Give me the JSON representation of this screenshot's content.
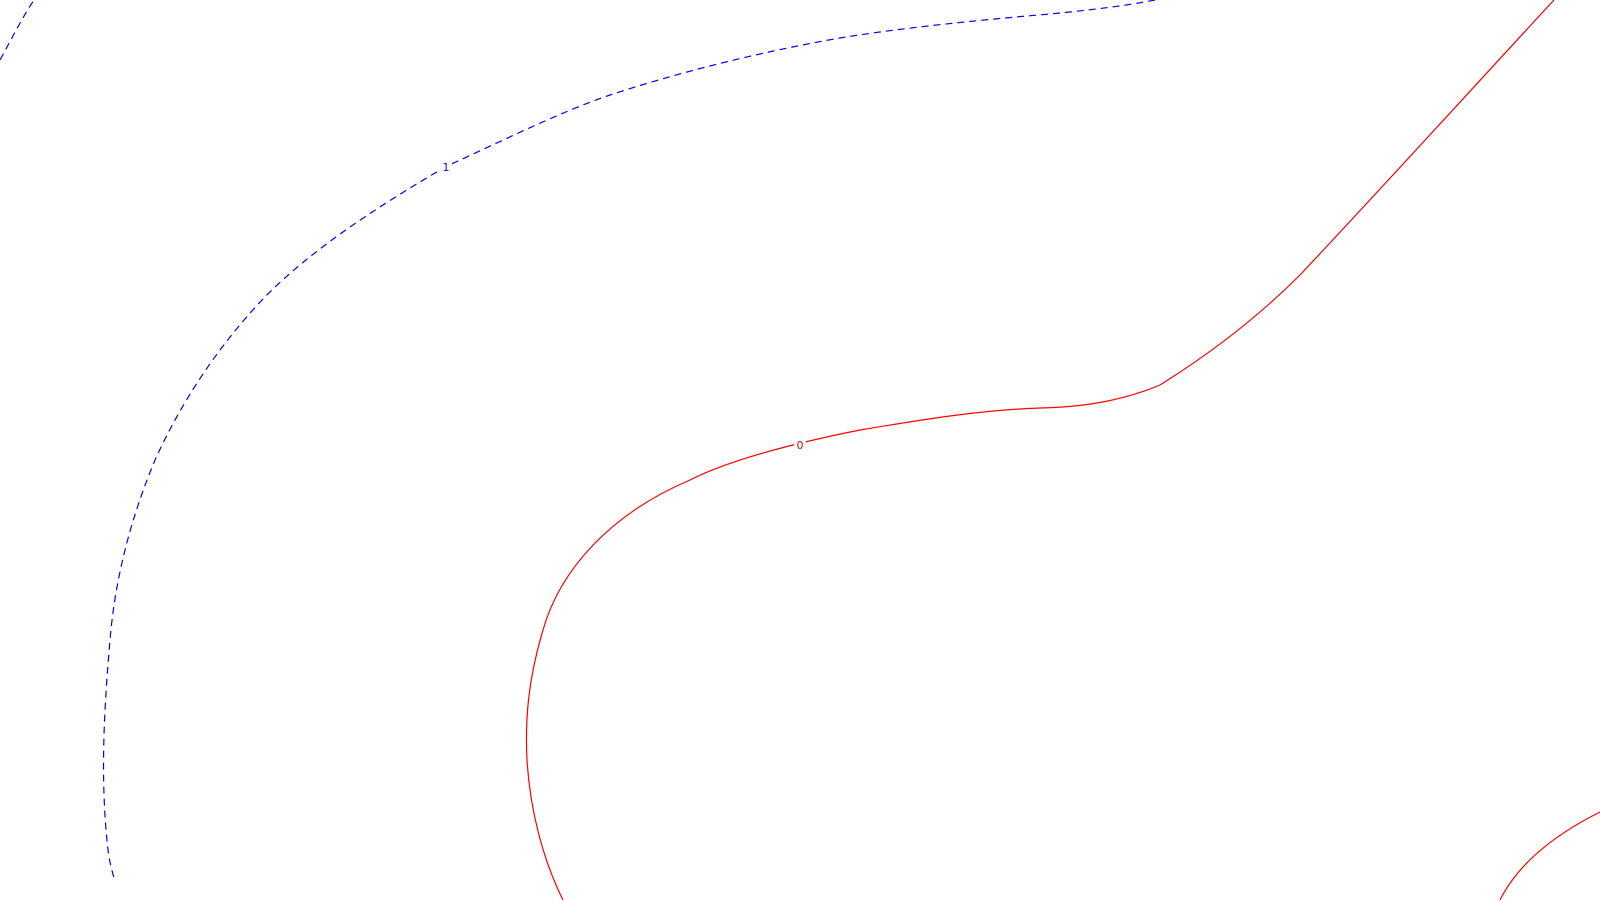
{
  "diagram": {
    "contours": [
      {
        "id": "contour-0",
        "level_label": "0",
        "color": "#ff0000",
        "line_style": "solid"
      },
      {
        "id": "contour-1",
        "level_label": "1",
        "color": "#0000ff",
        "line_style": "dashed"
      }
    ]
  }
}
